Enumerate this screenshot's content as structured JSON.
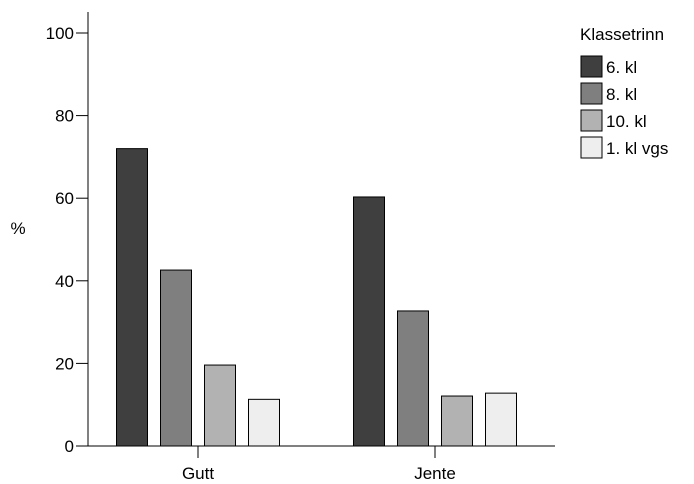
{
  "chart_data": {
    "type": "bar",
    "title": "",
    "xlabel": "",
    "ylabel": "%",
    "ylim": [
      0,
      100
    ],
    "yticks": [
      0,
      20,
      40,
      60,
      80,
      100
    ],
    "categories": [
      "Gutt",
      "Jente"
    ],
    "series": [
      {
        "name": "6. kl",
        "values": [
          72,
          60.3
        ],
        "color": "#3f3f3f"
      },
      {
        "name": "8. kl",
        "values": [
          42.6,
          32.7
        ],
        "color": "#7f7f7f"
      },
      {
        "name": "10. kl",
        "values": [
          19.6,
          12.1
        ],
        "color": "#b2b2b2"
      },
      {
        "name": "1. kl vgs",
        "values": [
          11.3,
          12.8
        ],
        "color": "#eeeeee"
      }
    ],
    "legend": {
      "title": "Klassetrinn",
      "position": "top-right"
    },
    "grid": false
  }
}
